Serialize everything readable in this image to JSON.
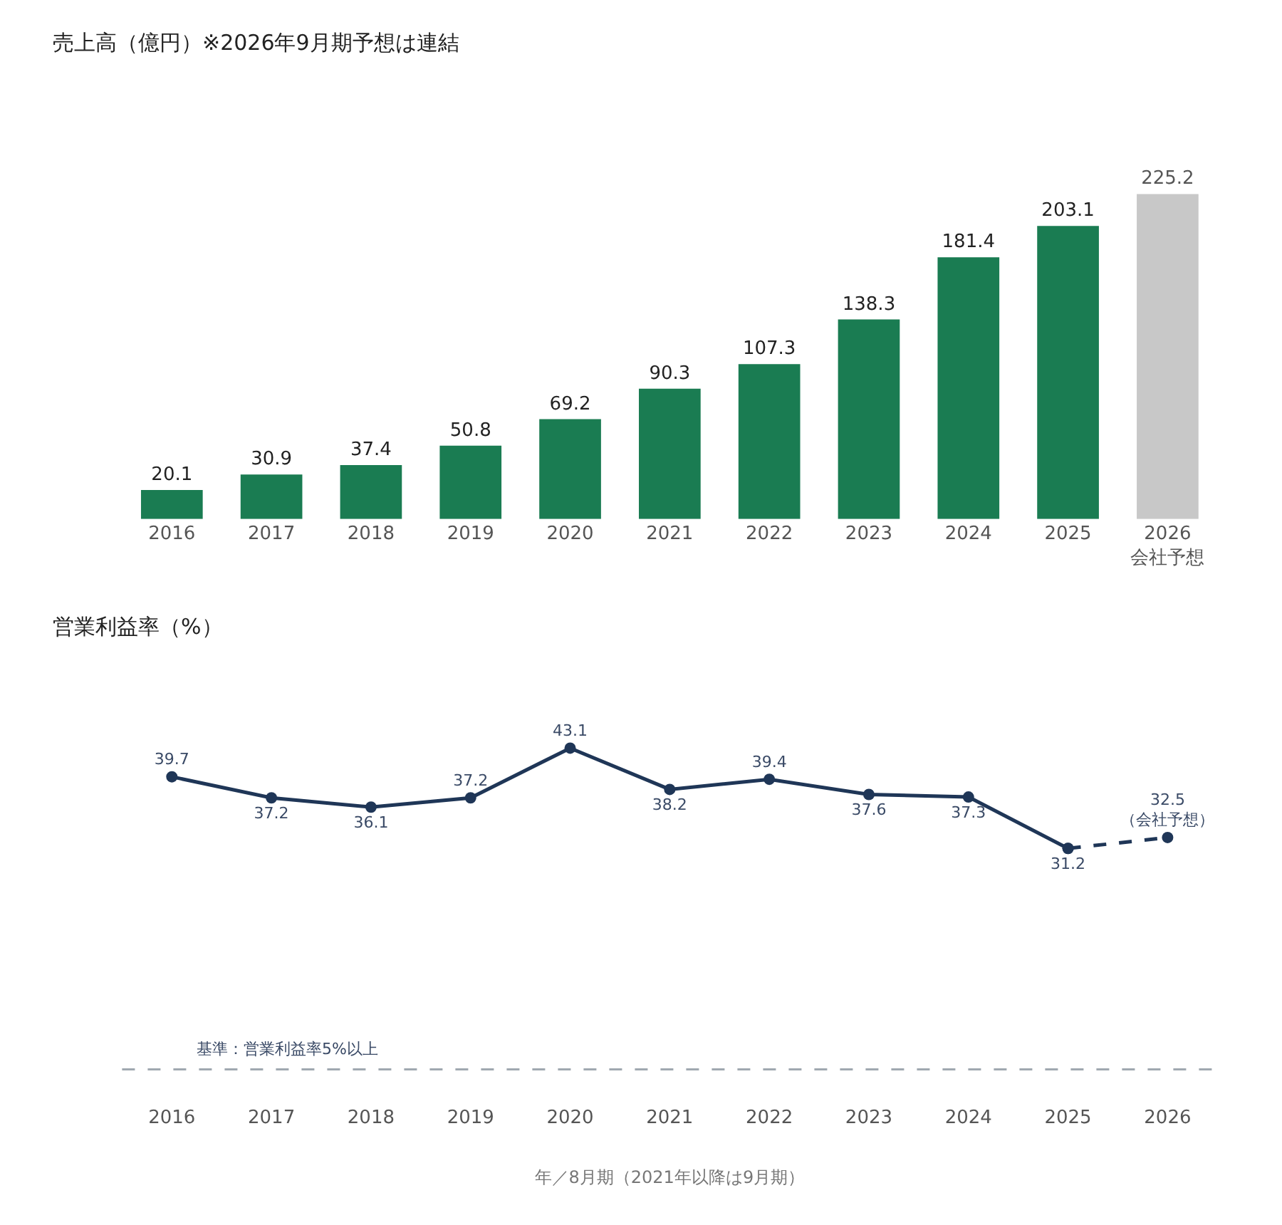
{
  "chart_data": [
    {
      "type": "bar",
      "title": "売上高（億円）※2026年9月期予想は連結",
      "categories": [
        "2016",
        "2017",
        "2018",
        "2019",
        "2020",
        "2021",
        "2022",
        "2023",
        "2024",
        "2025",
        "2026\n会社予想"
      ],
      "values": [
        20.1,
        30.9,
        37.4,
        50.8,
        69.2,
        90.3,
        107.3,
        138.3,
        181.4,
        203.1,
        225.2
      ],
      "colors": [
        "#1a7c52",
        "#1a7c52",
        "#1a7c52",
        "#1a7c52",
        "#1a7c52",
        "#1a7c52",
        "#1a7c52",
        "#1a7c52",
        "#1a7c52",
        "#1a7c52",
        "#c8c8c8"
      ],
      "data_labels": true
    },
    {
      "type": "line",
      "title": "営業利益率（%）",
      "xlabel": "年／8月期（2021年以降は9月期）",
      "categories": [
        "2016",
        "2017",
        "2018",
        "2019",
        "2020",
        "2021",
        "2022",
        "2023",
        "2024",
        "2025",
        "2026"
      ],
      "series": [
        {
          "color": "#1f3657",
          "line_style": "solid",
          "values": [
            39.7,
            37.2,
            36.1,
            37.2,
            43.1,
            38.2,
            39.4,
            37.6,
            37.3,
            31.2,
            null
          ],
          "value_labels": [
            "39.7",
            "37.2",
            "36.1",
            "37.2",
            "43.1",
            "38.2",
            "39.4",
            "37.6",
            "37.3",
            "31.2",
            null
          ]
        },
        {
          "color": "#1f3657",
          "line_style": "dashed",
          "values": [
            null,
            null,
            null,
            null,
            null,
            null,
            null,
            null,
            null,
            31.2,
            32.5
          ],
          "value_labels": [
            null,
            null,
            null,
            null,
            null,
            null,
            null,
            null,
            null,
            null,
            "32.5\n（会社予想）"
          ]
        }
      ],
      "marker": "circle",
      "ref_lines": [
        {
          "axis": "y",
          "value": 5,
          "label": "基準：営業利益率5%以上",
          "color": "#a0a8b0",
          "line_style": "dashed"
        }
      ]
    }
  ]
}
